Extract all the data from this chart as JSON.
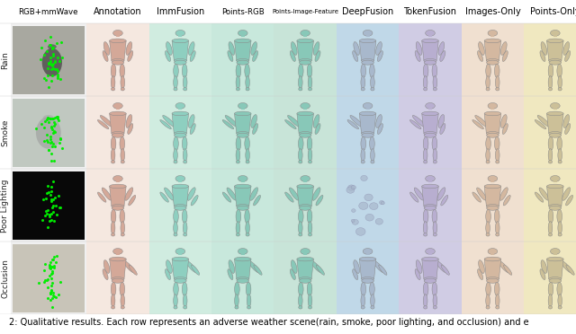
{
  "col_headers": [
    "RGB+mmWave",
    "Annotation",
    "ImmFusion",
    "Points-RGB",
    "Points-Image-Feature",
    "DeepFusion",
    "TokenFusion",
    "Images-Only",
    "Points-Only"
  ],
  "row_labels": [
    "Rain",
    "Smoke",
    "Poor Lighting",
    "Occlusion"
  ],
  "col_bg_colors": [
    "#f0f0f0",
    "#f5e8e0",
    "#d0ece0",
    "#c8e8dc",
    "#c8e4d8",
    "#c0d8e8",
    "#d0cce4",
    "#f0e0d0",
    "#f0e8c0"
  ],
  "caption": "2: Qualitative results. Each row represents an adverse weather scene(rain, smoke, poor lighting, and occlusion) and e",
  "n_cols": 9,
  "n_rows": 4,
  "header_fontsize": 7.0,
  "row_label_fontsize": 6.5,
  "caption_fontsize": 7.0,
  "body_colors": [
    "#d4a898",
    "#8ecfc0",
    "#88c8b8",
    "#88c8b8",
    "#a8b8cc",
    "#b8aed0",
    "#d4b8a0",
    "#ccc098"
  ],
  "row_img_colors": [
    "#a8a8a0",
    "#c0c8c0",
    "#080808",
    "#c8c4b8"
  ],
  "figure_bg": "#ffffff"
}
